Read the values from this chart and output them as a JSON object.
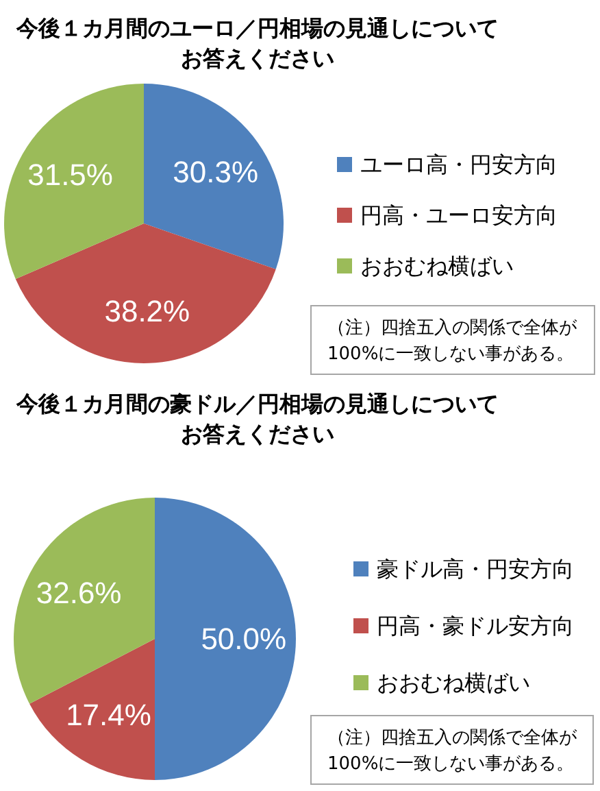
{
  "chart_data": [
    {
      "type": "pie",
      "title": "今後１カ月間のユーロ／円相場の見通しについてお答えください",
      "categories": [
        "ユーロ高・円安方向",
        "円高・ユーロ安方向",
        "おおむね横ばい"
      ],
      "values": [
        30.3,
        38.2,
        31.5
      ],
      "colors": [
        "#4f81bd",
        "#c0504d",
        "#9bbb59"
      ],
      "value_labels": [
        "30.3%",
        "38.2%",
        "31.5%"
      ],
      "legend": "right",
      "annotations": [
        "（注）四捨五入の関係で全体が100%に一致しない事がある。"
      ]
    },
    {
      "type": "pie",
      "title": "今後１カ月間の豪ドル／円相場の見通しについてお答えください",
      "categories": [
        "豪ドル高・円安方向",
        "円高・豪ドル安方向",
        "おおむね横ばい"
      ],
      "values": [
        50.0,
        17.4,
        32.6
      ],
      "colors": [
        "#4f81bd",
        "#c0504d",
        "#9bbb59"
      ],
      "value_labels": [
        "50.0%",
        "17.4%",
        "32.6%"
      ],
      "legend": "right",
      "annotations": [
        "（注）四捨五入の関係で全体が100%に一致しない事がある。"
      ]
    }
  ]
}
